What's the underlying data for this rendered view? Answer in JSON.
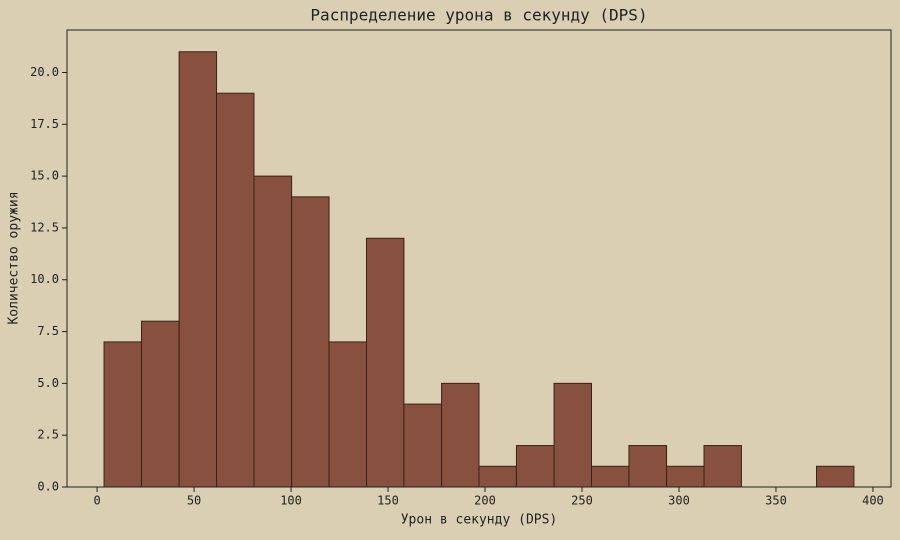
{
  "chart_data": {
    "type": "histogram",
    "title": "Распределение урона в секунду (DPS)",
    "x_label": "Урон в секунду (DPS)",
    "y_label": "Количество оружия",
    "bins": [
      3.6,
      22.9,
      42.3,
      61.6,
      80.9,
      100.3,
      119.6,
      138.9,
      158.2,
      177.6,
      196.9,
      216.2,
      235.6,
      254.9,
      274.2,
      293.6,
      312.9,
      332.2,
      351.5,
      370.9,
      390.2
    ],
    "counts": [
      7,
      8,
      21,
      19,
      15,
      14,
      7,
      12,
      4,
      5,
      1,
      2,
      5,
      1,
      2,
      1,
      2,
      0,
      0,
      1
    ],
    "color": "#87503f",
    "edge_color": "#3a2418",
    "xlim": [
      -15.5,
      409.3
    ],
    "ylim": [
      0,
      22.05
    ],
    "xticks": [
      0,
      50,
      100,
      150,
      200,
      250,
      300,
      350,
      400
    ],
    "yticks": [
      {
        "value": 0,
        "label": "0.0"
      },
      {
        "value": 2.5,
        "label": "2.5"
      },
      {
        "value": 5,
        "label": "5.0"
      },
      {
        "value": 7.5,
        "label": "7.5"
      },
      {
        "value": 10,
        "label": "10.0"
      },
      {
        "value": 12.5,
        "label": "12.5"
      },
      {
        "value": 15,
        "label": "15.0"
      },
      {
        "value": 17.5,
        "label": "17.5"
      },
      {
        "value": 20,
        "label": "20.0"
      }
    ],
    "grid": false
  }
}
